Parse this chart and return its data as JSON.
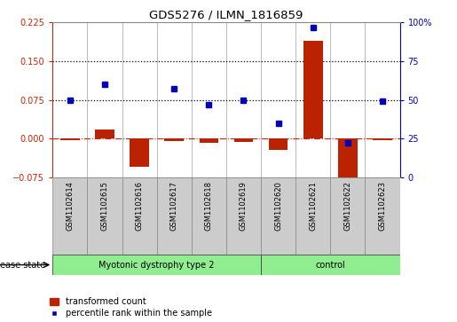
{
  "title": "GDS5276 / ILMN_1816859",
  "samples": [
    "GSM1102614",
    "GSM1102615",
    "GSM1102616",
    "GSM1102617",
    "GSM1102618",
    "GSM1102619",
    "GSM1102620",
    "GSM1102621",
    "GSM1102622",
    "GSM1102623"
  ],
  "red_values": [
    -0.003,
    0.018,
    -0.055,
    -0.005,
    -0.008,
    -0.007,
    -0.023,
    0.19,
    -0.088,
    -0.003
  ],
  "blue_values": [
    50,
    60,
    null,
    57,
    47,
    50,
    35,
    97,
    22,
    49
  ],
  "ylim_left": [
    -0.075,
    0.225
  ],
  "ylim_right": [
    0,
    100
  ],
  "left_ticks": [
    -0.075,
    0,
    0.075,
    0.15,
    0.225
  ],
  "right_ticks": [
    0,
    25,
    50,
    75,
    100
  ],
  "hlines": [
    0.075,
    0.15
  ],
  "groups": [
    {
      "label": "Myotonic dystrophy type 2",
      "start": 0,
      "end": 6
    },
    {
      "label": "control",
      "start": 6,
      "end": 10
    }
  ],
  "group_color": "#90EE90",
  "disease_label": "disease state",
  "bar_color": "#BB2200",
  "dot_color": "#0000BB",
  "zero_line_color": "#CC2200",
  "bg_color": "#FFFFFF",
  "tick_box_color": "#CCCCCC",
  "separator_color": "#888888",
  "left_tick_color": "#CC2200",
  "right_tick_color": "#0000BB"
}
